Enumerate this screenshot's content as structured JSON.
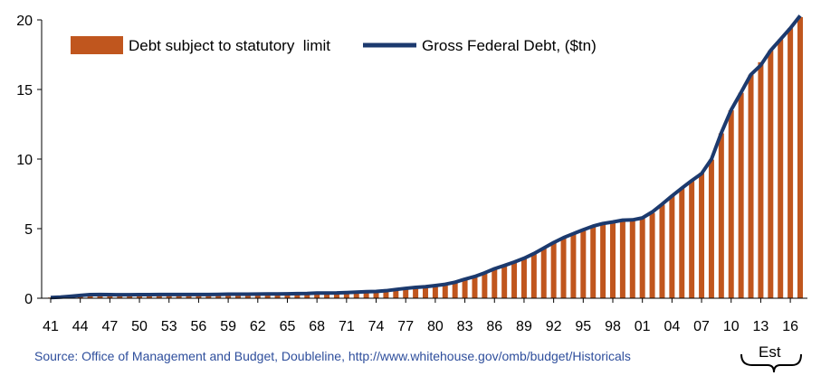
{
  "chart_data": {
    "type": "bar",
    "title": "",
    "xlabel": "",
    "ylabel": "",
    "ylim": [
      0,
      20
    ],
    "yticks": [
      0,
      5,
      10,
      15,
      20
    ],
    "x": [
      1941,
      1942,
      1943,
      1944,
      1945,
      1946,
      1947,
      1948,
      1949,
      1950,
      1951,
      1952,
      1953,
      1954,
      1955,
      1956,
      1957,
      1958,
      1959,
      1960,
      1961,
      1962,
      1963,
      1964,
      1965,
      1966,
      1967,
      1968,
      1969,
      1970,
      1971,
      1972,
      1973,
      1974,
      1975,
      1976,
      1977,
      1978,
      1979,
      1980,
      1981,
      1982,
      1983,
      1984,
      1985,
      1986,
      1987,
      1988,
      1989,
      1990,
      1991,
      1992,
      1993,
      1994,
      1995,
      1996,
      1997,
      1998,
      1999,
      2000,
      2001,
      2002,
      2003,
      2004,
      2005,
      2006,
      2007,
      2008,
      2009,
      2010,
      2011,
      2012,
      2013,
      2014,
      2015,
      2016,
      2017
    ],
    "xtick_labels": [
      "41",
      "44",
      "47",
      "50",
      "53",
      "56",
      "59",
      "62",
      "65",
      "68",
      "71",
      "74",
      "77",
      "80",
      "83",
      "86",
      "89",
      "92",
      "95",
      "98",
      "01",
      "04",
      "07",
      "10",
      "13",
      "16"
    ],
    "series": [
      {
        "name": "Debt subject to statutory  limit",
        "type": "bar",
        "color": "#c0561e",
        "values": [
          0.05,
          0.07,
          0.14,
          0.2,
          0.26,
          0.27,
          0.26,
          0.25,
          0.25,
          0.26,
          0.26,
          0.27,
          0.27,
          0.27,
          0.27,
          0.27,
          0.27,
          0.28,
          0.29,
          0.29,
          0.29,
          0.3,
          0.31,
          0.31,
          0.32,
          0.33,
          0.34,
          0.36,
          0.36,
          0.37,
          0.4,
          0.43,
          0.46,
          0.48,
          0.53,
          0.62,
          0.7,
          0.77,
          0.83,
          0.91,
          1.0,
          1.14,
          1.38,
          1.57,
          1.82,
          2.11,
          2.35,
          2.59,
          2.83,
          3.16,
          3.57,
          3.98,
          4.34,
          4.64,
          4.92,
          5.18,
          5.36,
          5.44,
          5.56,
          5.66,
          5.73,
          6.13,
          6.72,
          7.35,
          7.9,
          8.42,
          9.0,
          9.96,
          11.85,
          13.51,
          14.76,
          16.05,
          16.96,
          17.8,
          18.6,
          19.4,
          20.2
        ]
      },
      {
        "name": "Gross Federal Debt, ($tn)",
        "type": "line",
        "color": "#1c3a6e",
        "values": [
          0.05,
          0.08,
          0.14,
          0.2,
          0.26,
          0.27,
          0.26,
          0.25,
          0.25,
          0.26,
          0.26,
          0.27,
          0.27,
          0.27,
          0.27,
          0.27,
          0.27,
          0.28,
          0.29,
          0.29,
          0.29,
          0.3,
          0.31,
          0.31,
          0.32,
          0.33,
          0.34,
          0.37,
          0.37,
          0.38,
          0.41,
          0.44,
          0.47,
          0.49,
          0.54,
          0.63,
          0.71,
          0.78,
          0.83,
          0.91,
          1.0,
          1.15,
          1.37,
          1.56,
          1.82,
          2.12,
          2.35,
          2.6,
          2.87,
          3.21,
          3.6,
          4.0,
          4.35,
          4.64,
          4.92,
          5.18,
          5.37,
          5.48,
          5.61,
          5.63,
          5.77,
          6.2,
          6.76,
          7.35,
          7.91,
          8.45,
          8.95,
          9.99,
          11.88,
          13.53,
          14.78,
          16.07,
          16.74,
          17.8,
          18.6,
          19.4,
          20.3
        ]
      }
    ],
    "legend_position": "top-left",
    "source": "Source: Office of Management and Budget, Doubleline, http://www.whitehouse.gov/omb/budget/Historicals",
    "annotation": "Est",
    "annotation_range": [
      2011,
      2017
    ],
    "grid": false
  }
}
